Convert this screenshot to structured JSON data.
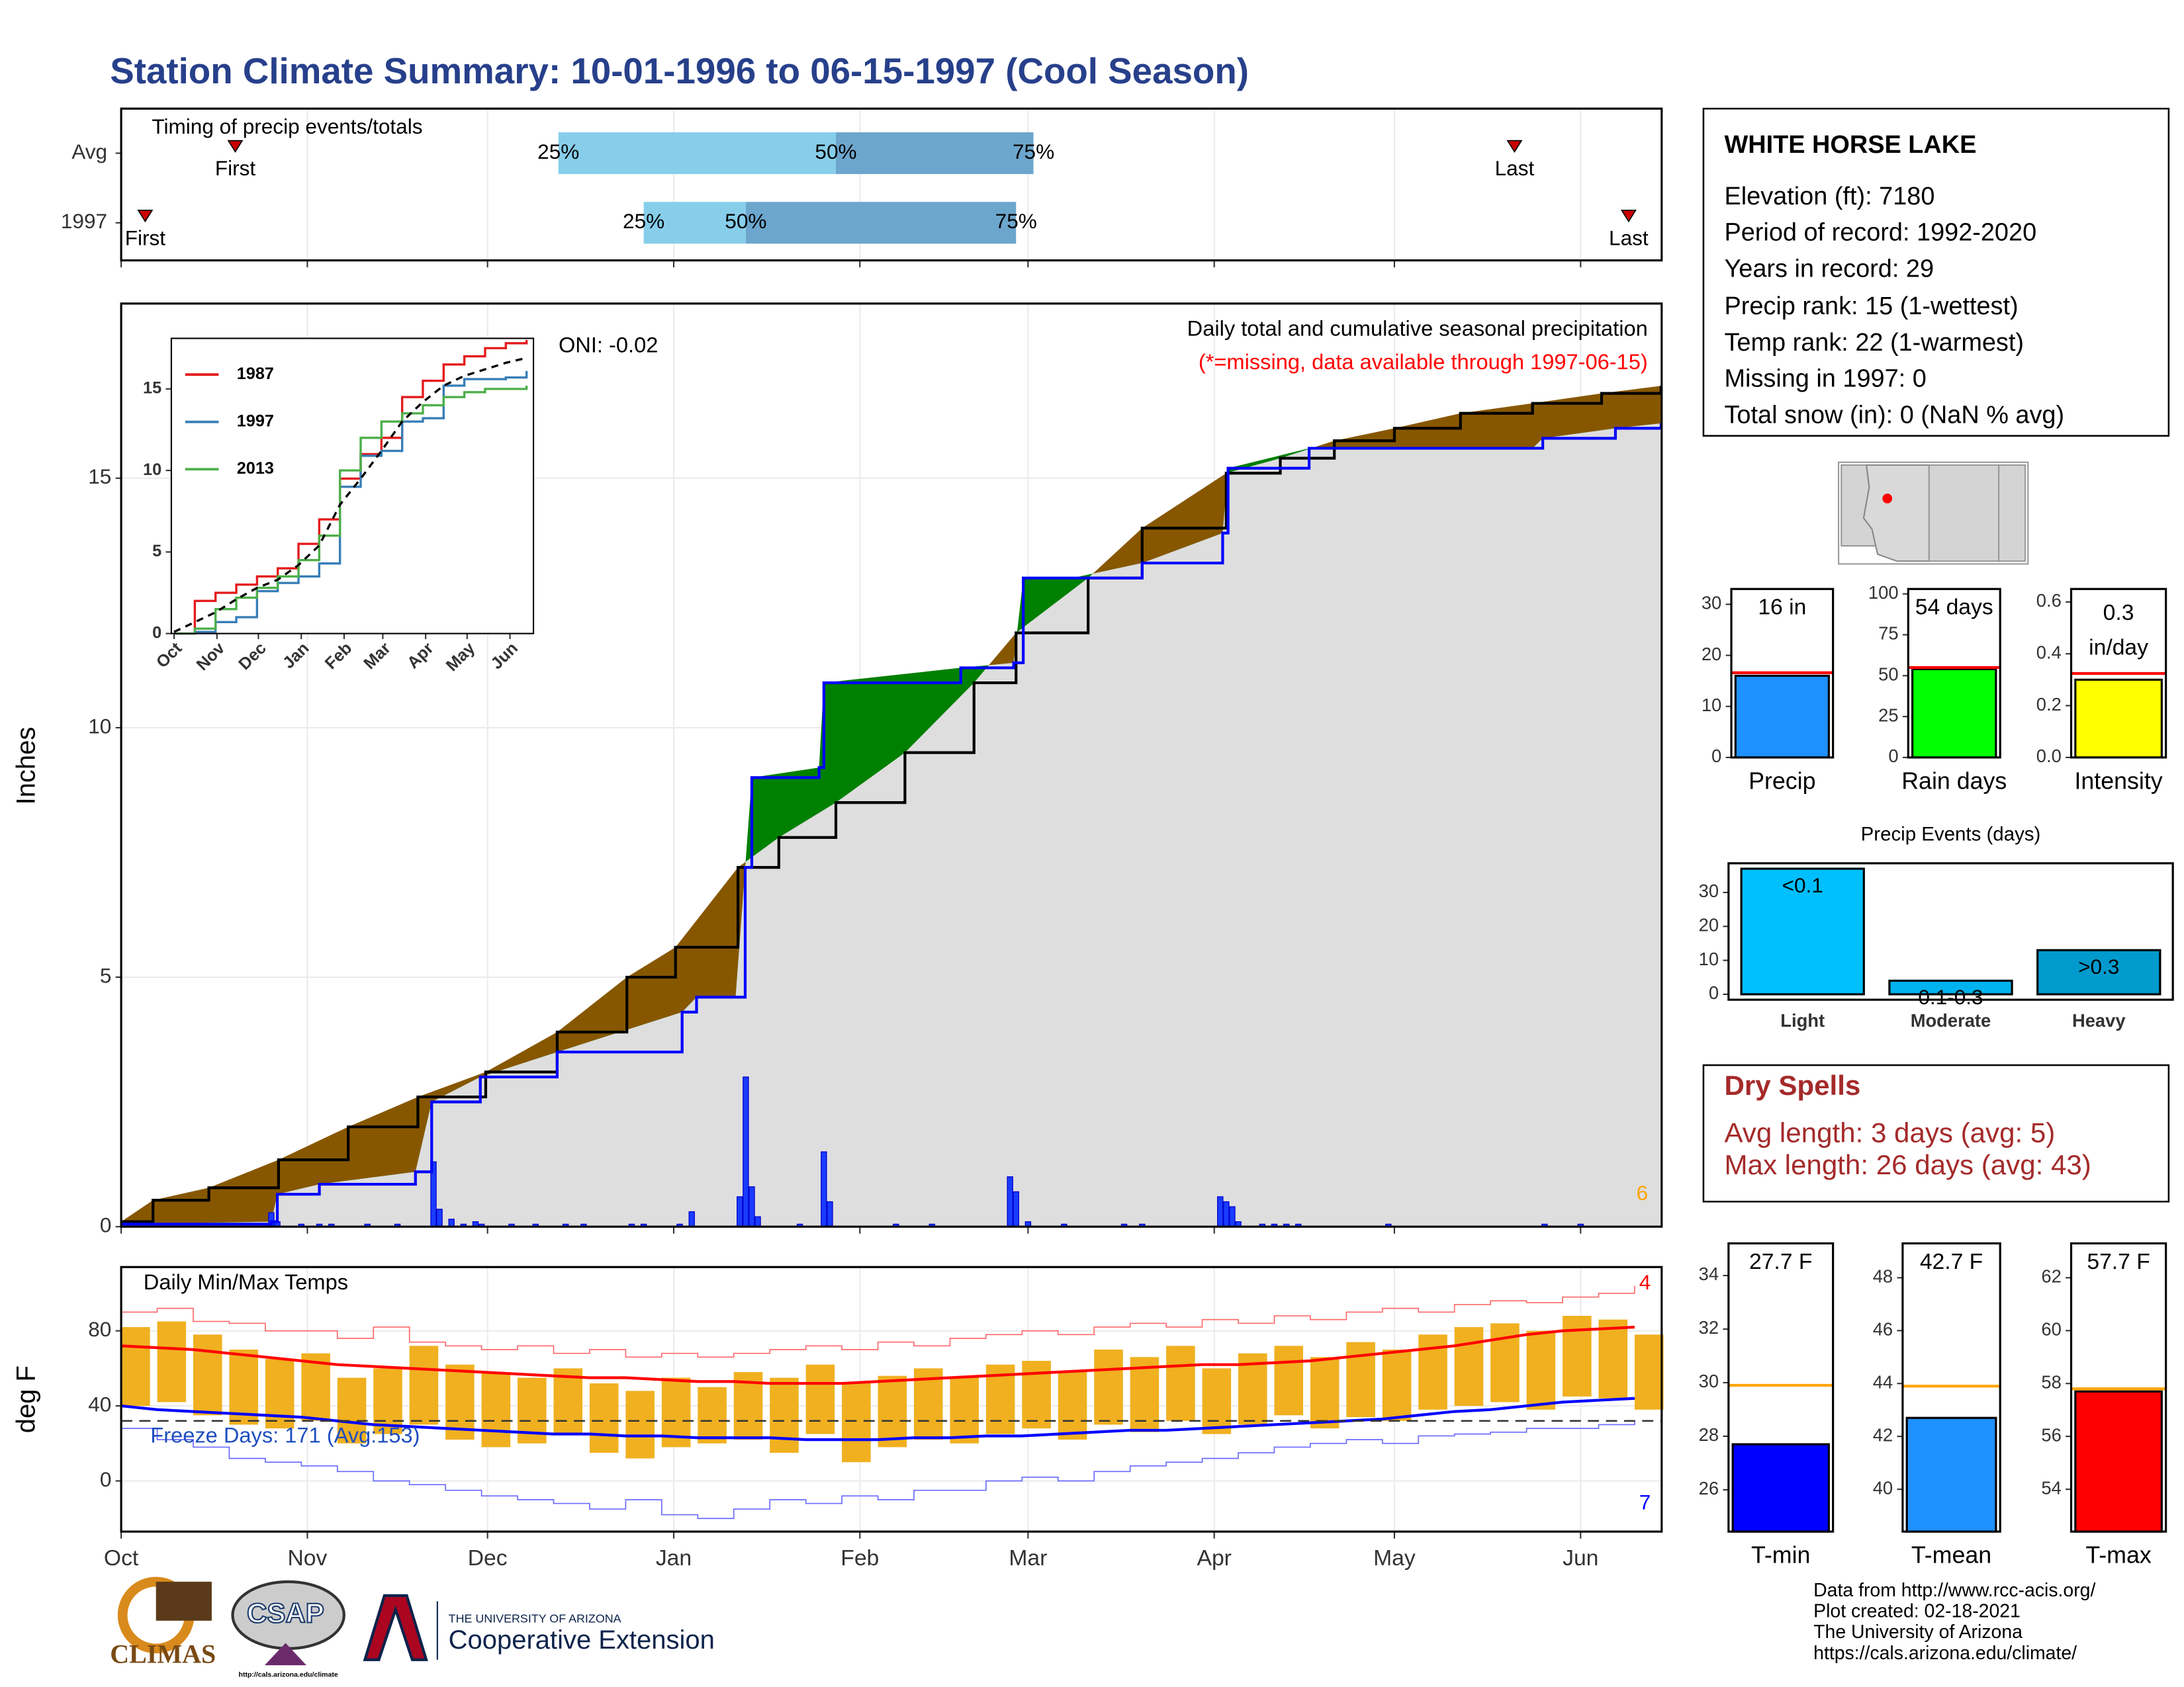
{
  "title": "Station Climate Summary: 10-01-1996 to 06-15-1997 (Cool Season)",
  "x_axis": {
    "xlim": [
      0,
      256.5
    ],
    "xticks": [
      {
        "value": 0,
        "label": "Oct"
      },
      {
        "value": 31,
        "label": "Nov"
      },
      {
        "value": 61,
        "label": "Dec"
      },
      {
        "value": 92,
        "label": "Jan"
      },
      {
        "value": 123,
        "label": "Feb"
      },
      {
        "value": 151,
        "label": "Mar"
      },
      {
        "value": 182,
        "label": "Apr"
      },
      {
        "value": 212,
        "label": "May"
      },
      {
        "value": 243,
        "label": "Jun"
      }
    ]
  },
  "chart_data": [
    {
      "type": "range",
      "title": "Timing of precip events/totals",
      "quantile_labels": [
        "25%",
        "50%",
        "75%"
      ],
      "first_label": "First",
      "last_label": "Last",
      "colors": [
        "#87ceeb",
        "#6ca6cd"
      ],
      "marker_color": "#cc0000",
      "rows": [
        {
          "label": "Avg",
          "first": 19,
          "quantiles": [
            72.8,
            119,
            151.9
          ],
          "last": 232
        },
        {
          "label": "1997",
          "first": 4,
          "quantiles": [
            87,
            104,
            149
          ],
          "last": 251
        }
      ]
    },
    {
      "type": "area",
      "title": "Daily total and cumulative seasonal precipitation",
      "note": "(*=missing, data available through 1997-06-15)",
      "annotation": "ONI: -0.02",
      "corner_label": 6,
      "ylabel": "Inches",
      "ylim": [
        0,
        18.5
      ],
      "yticks": [
        0,
        5,
        10,
        15
      ],
      "grid": true,
      "fill_colors": {
        "below": "#875700",
        "above": "#008000",
        "base": "#dedede"
      },
      "average": {
        "color": "#000000",
        "x": [
          0,
          5.3,
          14.6,
          26.2,
          37.8,
          49.4,
          60.7,
          72.6,
          84.2,
          92.3,
          102.7,
          109.5,
          119,
          130.5,
          142,
          149,
          161,
          170,
          184,
          193,
          202,
          212,
          223,
          235,
          246.5,
          256.4
        ],
        "values": [
          0.1,
          0.53,
          0.78,
          1.34,
          2.0,
          2.6,
          3.1,
          3.9,
          5.0,
          5.6,
          7.2,
          7.8,
          8.5,
          9.5,
          10.9,
          11.9,
          13.0,
          14.0,
          15.1,
          15.4,
          15.75,
          16.0,
          16.3,
          16.5,
          16.7,
          16.85
        ]
      },
      "season": {
        "color": "#0000ff",
        "x": [
          0,
          25,
          26,
          33,
          49,
          51.7,
          59.8,
          72.6,
          93.4,
          95.8,
          102.3,
          103.9,
          105,
          116.2,
          117,
          139.8,
          148.6,
          150.2,
          158.4,
          170,
          183.4,
          184.3,
          197.8,
          235,
          236.7,
          248.8,
          256.4
        ],
        "values": [
          0.05,
          0.1,
          0.65,
          0.85,
          1.1,
          2.5,
          3.0,
          3.5,
          4.3,
          4.6,
          4.6,
          7.2,
          9.0,
          9.2,
          10.9,
          11.2,
          11.3,
          13.0,
          13.0,
          13.3,
          13.9,
          15.2,
          15.6,
          15.6,
          15.8,
          16.0,
          16.1
        ]
      },
      "daily": {
        "color": "#1a3cff",
        "x": [
          25,
          26,
          30,
          33,
          35,
          41,
          46,
          52,
          53,
          55,
          57,
          59,
          60,
          65,
          69,
          74,
          77,
          85,
          87,
          93,
          95,
          103,
          104,
          105,
          106,
          113,
          117,
          118,
          129,
          135,
          148,
          149,
          151,
          157,
          167,
          170,
          183,
          184,
          185,
          186,
          190,
          192,
          194,
          196,
          211,
          237,
          243
        ],
        "values": [
          0.28,
          0.1,
          0.05,
          0.05,
          0.05,
          0.05,
          0.05,
          1.3,
          0.35,
          0.15,
          0.05,
          0.1,
          0.05,
          0.05,
          0.05,
          0.05,
          0.05,
          0.05,
          0.05,
          0.05,
          0.3,
          0.6,
          3.0,
          0.8,
          0.2,
          0.05,
          1.5,
          0.5,
          0.05,
          0.05,
          1.0,
          0.7,
          0.1,
          0.05,
          0.05,
          0.05,
          0.6,
          0.5,
          0.4,
          0.1,
          0.05,
          0.05,
          0.05,
          0.05,
          0.05,
          0.05,
          0.05
        ]
      }
    },
    {
      "type": "line",
      "xlim": [
        -2,
        260
      ],
      "ylim": [
        0,
        18.1
      ],
      "yticks": [
        0,
        5,
        10,
        15
      ],
      "x": [
        0,
        15,
        30,
        45,
        60,
        75,
        90,
        105,
        120,
        135,
        150,
        165,
        180,
        195,
        210,
        225,
        240,
        255
      ],
      "series": [
        {
          "name": "1987",
          "color": "#e41a1c",
          "values": [
            0,
            2,
            2.5,
            3,
            3.5,
            4,
            5.5,
            7,
            9.5,
            11,
            12,
            14.5,
            15.5,
            16.5,
            17,
            17.5,
            17.8,
            18
          ]
        },
        {
          "name": "1997",
          "color": "#377eb8",
          "values": [
            0,
            0.1,
            0.7,
            1,
            2.6,
            3.1,
            3.5,
            4.3,
            9.0,
            10.9,
            11.2,
            13,
            13.2,
            15.2,
            15.6,
            15.6,
            15.7,
            16.1
          ]
        },
        {
          "name": "2013",
          "color": "#4daf4a",
          "values": [
            0,
            0.3,
            1.5,
            2.2,
            2.8,
            3.5,
            4.5,
            6,
            10,
            12,
            13,
            13.5,
            14,
            14.5,
            14.8,
            15,
            15,
            15.2
          ]
        }
      ],
      "average": {
        "color": "#000000",
        "values": [
          0.1,
          0.7,
          1.3,
          2.1,
          2.8,
          3.3,
          4.2,
          5.4,
          7.9,
          9.5,
          11.2,
          13,
          14.2,
          15.2,
          15.8,
          16.2,
          16.6,
          16.9
        ]
      }
    },
    {
      "type": "bar",
      "category": "Precip",
      "value": 16,
      "value_label": "16 in",
      "average": 16.6,
      "ylim": [
        0,
        33
      ],
      "yticks": [
        0,
        10,
        20,
        30
      ],
      "color": "#1e90ff",
      "average_color": "#ff0000"
    },
    {
      "type": "bar",
      "category": "Rain days",
      "value": 54,
      "value_label": "54 days",
      "average": 55,
      "ylim": [
        0,
        103
      ],
      "yticks": [
        0,
        25,
        50,
        75,
        100
      ],
      "color": "#00ff00",
      "average_color": "#ff0000"
    },
    {
      "type": "bar",
      "category": "Intensity",
      "value": 0.3,
      "value_label": "0.3",
      "unit_label": "in/day",
      "average": 0.324,
      "ylim": [
        0,
        0.65
      ],
      "yticks": [
        {
          "value": 0,
          "label": "0.0"
        },
        {
          "value": 0.2,
          "label": "0.2"
        },
        {
          "value": 0.4,
          "label": "0.4"
        },
        {
          "value": 0.6,
          "label": "0.6"
        }
      ],
      "color": "#ffff00",
      "average_color": "#ff0000"
    },
    {
      "type": "bar",
      "title": "Precip Events (days)",
      "categories": [
        "Light",
        "Moderate",
        "Heavy"
      ],
      "values": [
        37,
        4,
        13
      ],
      "thresholds": [
        "<0.1",
        "0.1-0.3",
        ">0.3"
      ],
      "colors": [
        "#00bfff",
        "#00b2ee",
        "#009acd"
      ],
      "ylim": [
        -1.6,
        38.6
      ],
      "yticks": [
        0,
        10,
        20,
        30
      ]
    },
    {
      "type": "temperature",
      "title": "Daily Min/Max Temps",
      "annotation": "Freeze Days: 171 (Avg:153)",
      "high_count": 4,
      "low_count": 7,
      "ylabel": "deg F",
      "ylim": [
        -27,
        114
      ],
      "yticks": [
        0,
        40,
        80
      ],
      "grid": true,
      "freeze": 32,
      "x": [
        0,
        6,
        12,
        18,
        24,
        30,
        36,
        42,
        48,
        54,
        60,
        66,
        72,
        78,
        84,
        90,
        96,
        102,
        108,
        114,
        120,
        126,
        132,
        138,
        144,
        150,
        156,
        162,
        168,
        174,
        180,
        186,
        192,
        198,
        204,
        210,
        216,
        222,
        228,
        234,
        240,
        246,
        252
      ],
      "record_high": {
        "color": "#ff6a6a",
        "values": [
          90,
          92,
          85,
          84,
          80,
          80,
          76,
          82,
          74,
          72,
          70,
          72,
          68,
          70,
          66,
          68,
          66,
          68,
          70,
          72,
          70,
          74,
          72,
          76,
          78,
          80,
          78,
          82,
          84,
          82,
          86,
          84,
          88,
          86,
          90,
          92,
          90,
          94,
          96,
          95,
          98,
          100,
          104
        ]
      },
      "avg_high": {
        "color": "#ff0000",
        "values": [
          72,
          71,
          70,
          68,
          66,
          64,
          62,
          61,
          60,
          59,
          58,
          57,
          56,
          55,
          55,
          54,
          53,
          53,
          52,
          52,
          52,
          53,
          54,
          55,
          56,
          57,
          58,
          59,
          60,
          61,
          62,
          62,
          63,
          64,
          66,
          68,
          70,
          72,
          75,
          78,
          80,
          81,
          82
        ]
      },
      "avg_low": {
        "color": "#0000ff",
        "values": [
          40,
          38,
          37,
          36,
          35,
          34,
          32,
          30,
          29,
          28,
          27,
          26,
          25,
          25,
          24,
          24,
          23,
          23,
          23,
          22,
          22,
          22,
          23,
          23,
          24,
          24,
          25,
          26,
          27,
          27,
          28,
          29,
          30,
          31,
          32,
          33,
          35,
          37,
          38,
          40,
          42,
          43,
          44
        ]
      },
      "record_low": {
        "color": "#6a6aff",
        "values": [
          28,
          22,
          18,
          12,
          10,
          8,
          5,
          0,
          -2,
          -5,
          -8,
          -10,
          -12,
          -15,
          -10,
          -18,
          -20,
          -15,
          -10,
          -12,
          -8,
          -10,
          -5,
          -5,
          0,
          2,
          0,
          5,
          8,
          10,
          12,
          15,
          18,
          20,
          22,
          20,
          24,
          25,
          26,
          28,
          28,
          30,
          32
        ]
      },
      "observed": {
        "color": "#f0b020",
        "max": [
          82,
          85,
          78,
          70,
          65,
          68,
          55,
          60,
          72,
          62,
          58,
          55,
          60,
          52,
          48,
          55,
          50,
          58,
          55,
          62,
          52,
          56,
          60,
          55,
          62,
          64,
          58,
          70,
          66,
          72,
          60,
          68,
          72,
          66,
          74,
          70,
          78,
          82,
          84,
          80,
          88,
          86,
          78
        ],
        "min": [
          40,
          42,
          35,
          30,
          28,
          32,
          20,
          25,
          30,
          22,
          18,
          20,
          25,
          15,
          12,
          18,
          20,
          22,
          15,
          25,
          10,
          18,
          22,
          20,
          25,
          28,
          22,
          30,
          26,
          32,
          25,
          30,
          35,
          28,
          34,
          32,
          38,
          40,
          42,
          38,
          45,
          44,
          38
        ]
      }
    },
    {
      "type": "bar",
      "category": "T-min",
      "value": 27.7,
      "value_label": "27.7 F",
      "average": 29.9,
      "ylim": [
        24.44,
        35.2
      ],
      "yticks": [
        26,
        28,
        30,
        32,
        34
      ],
      "color": "#0000ff",
      "average_color": "#ffa500"
    },
    {
      "type": "bar",
      "category": "T-mean",
      "value": 42.7,
      "value_label": "42.7 F",
      "average": 43.9,
      "ylim": [
        38.4,
        49.3
      ],
      "yticks": [
        40,
        42,
        44,
        46,
        48
      ],
      "color": "#1e90ff",
      "average_color": "#ffa500"
    },
    {
      "type": "bar",
      "category": "T-max",
      "value": 57.7,
      "value_label": "57.7 F",
      "average": 57.8,
      "ylim": [
        52.4,
        63.3
      ],
      "yticks": [
        54,
        56,
        58,
        60,
        62
      ],
      "color": "#ff0000",
      "average_color": "#ffa500"
    }
  ],
  "info": {
    "station": "WHITE HORSE LAKE",
    "lines": [
      "Elevation (ft): 7180",
      "Period of record: 1992-2020",
      "Years in record: 29",
      "Precip rank: 15 (1-wettest)",
      "Temp rank: 22 (1-warmest)",
      "Missing in 1997: 0",
      "Total snow (in): 0 (NaN % avg)"
    ]
  },
  "dry_spells": {
    "title": "Dry Spells",
    "lines": [
      "Avg length: 3 days (avg: 5)",
      "Max length: 26 days (avg: 43)"
    ]
  },
  "footer": [
    "Data from http://www.rcc-acis.org/",
    "Plot created: 02-18-2021",
    "The University of Arizona",
    "https://cals.arizona.edu/climate/"
  ],
  "logos": {
    "climas": "CLIMAS",
    "csap": "CSAP",
    "csap_url": "http://cals.arizona.edu/climate",
    "university": "THE UNIVERSITY OF ARIZONA",
    "extension": "Cooperative Extension"
  }
}
